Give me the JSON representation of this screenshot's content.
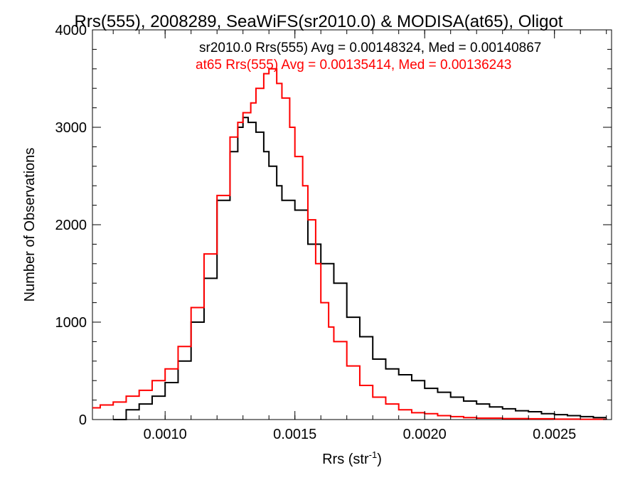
{
  "chart_data": {
    "type": "line",
    "title": "Rrs(555), 2008289, SeaWiFS(sr2010.0) & MODISA(at65), Oligot",
    "xlabel": "Rrs (str",
    "xlabel_sup": "-1",
    "xlabel_close": ")",
    "ylabel": "Number of Observations",
    "xlim": [
      0.00072,
      0.00272
    ],
    "ylim": [
      0,
      4000
    ],
    "x_ticks": [
      0.001,
      0.0015,
      0.002,
      0.0025
    ],
    "x_tick_labels": [
      "0.0010",
      "0.0015",
      "0.0020",
      "0.0025"
    ],
    "y_ticks": [
      0,
      1000,
      2000,
      3000,
      4000
    ],
    "y_tick_labels": [
      "0",
      "1000",
      "2000",
      "3000",
      "4000"
    ],
    "grid": false,
    "legend_position": "top",
    "legend_entries": [
      "sr2010.0 Rrs(555) Avg = 0.00148324, Med = 0.00140867",
      "at65 Rrs(555) Avg = 0.00135414, Med = 0.00136243"
    ],
    "series": [
      {
        "name": "sr2010.0",
        "color": "#000000",
        "x": [
          0.0008,
          0.00085,
          0.0009,
          0.00095,
          0.001,
          0.00105,
          0.0011,
          0.00115,
          0.0012,
          0.00125,
          0.00128,
          0.0013,
          0.00132,
          0.00135,
          0.00138,
          0.0014,
          0.00143,
          0.00145,
          0.0015,
          0.00155,
          0.0016,
          0.00165,
          0.0017,
          0.00175,
          0.0018,
          0.00185,
          0.0019,
          0.00195,
          0.002,
          0.00205,
          0.0021,
          0.00215,
          0.0022,
          0.00225,
          0.0023,
          0.00235,
          0.0024,
          0.00245,
          0.0025,
          0.00255,
          0.0026,
          0.00265,
          0.0027
        ],
        "y": [
          0,
          100,
          160,
          240,
          380,
          600,
          1000,
          1450,
          2250,
          2750,
          3000,
          3100,
          3050,
          2950,
          2750,
          2600,
          2400,
          2250,
          2150,
          1800,
          1600,
          1400,
          1050,
          850,
          620,
          520,
          460,
          400,
          320,
          280,
          230,
          190,
          160,
          130,
          110,
          90,
          80,
          60,
          50,
          40,
          30,
          20,
          20
        ]
      },
      {
        "name": "at65",
        "color": "#ff0000",
        "x": [
          0.00072,
          0.00075,
          0.0008,
          0.00085,
          0.0009,
          0.00095,
          0.001,
          0.00105,
          0.0011,
          0.00115,
          0.0012,
          0.00125,
          0.00128,
          0.0013,
          0.00133,
          0.00135,
          0.00138,
          0.0014,
          0.00143,
          0.00145,
          0.00148,
          0.0015,
          0.00153,
          0.00155,
          0.00158,
          0.0016,
          0.00163,
          0.00165,
          0.0017,
          0.00175,
          0.0018,
          0.00185,
          0.0019,
          0.00195,
          0.002,
          0.00205,
          0.0021,
          0.00215,
          0.0022,
          0.0023,
          0.0024,
          0.0025,
          0.0026,
          0.0027
        ],
        "y": [
          120,
          150,
          180,
          240,
          300,
          400,
          520,
          750,
          1150,
          1700,
          2300,
          2900,
          3050,
          3150,
          3250,
          3400,
          3550,
          3600,
          3450,
          3300,
          3000,
          2700,
          2400,
          2050,
          1600,
          1200,
          950,
          800,
          550,
          350,
          230,
          160,
          100,
          70,
          60,
          40,
          30,
          20,
          15,
          10,
          8,
          5,
          3,
          2
        ]
      }
    ]
  }
}
